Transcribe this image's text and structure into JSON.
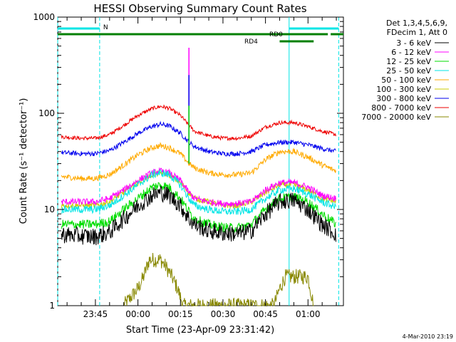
{
  "chart_data": {
    "type": "line",
    "title": "HESSI Observing Summary Count Rates",
    "xlabel": "Start Time (23-Apr-09 23:31:42)",
    "ylabel": "Count Rate (s⁻¹ detector⁻¹)",
    "yscale": "log",
    "ylim": [
      1,
      1000
    ],
    "xlim": [
      "23:31:42",
      "01:12:30"
    ],
    "y_ticks": [
      "1",
      "10",
      "100",
      "1000"
    ],
    "x_ticks": [
      "23:45",
      "00:00",
      "00:15",
      "00:30",
      "00:45",
      "01:00"
    ],
    "legend_header": [
      "Det 1,3,4,5,6,9,",
      "FDecim 1, Att 0"
    ],
    "legend_position": "right",
    "footer": "4-Mar-2010 23:19",
    "vertical_lines": [
      "23:31:42",
      "23:46:30",
      "00:53:20",
      "01:10:50"
    ],
    "flags": [
      {
        "label": "N",
        "color": "#00e5e5",
        "segments": [
          [
            "23:31:42",
            "23:46:30"
          ],
          [
            "00:53:20",
            "01:10:50"
          ]
        ]
      },
      {
        "label": "RD0",
        "color": "#007f00",
        "segments": [
          [
            "23:31:42",
            "01:07:00"
          ],
          [
            "01:08:00",
            "01:12:30"
          ]
        ]
      },
      {
        "label": "RD4",
        "color": "#007f00",
        "segments": [
          [
            "00:50:00",
            "01:02:00"
          ]
        ]
      }
    ],
    "series": [
      {
        "name": "3 - 6 keV",
        "color": "#000000",
        "x": [
          "23:33",
          "23:40",
          "23:45",
          "23:50",
          "23:55",
          "00:00",
          "00:05",
          "00:08",
          "00:11",
          "00:15",
          "00:18",
          "00:20",
          "00:25",
          "00:30",
          "00:35",
          "00:40",
          "00:45",
          "00:50",
          "00:55",
          "01:00",
          "01:05",
          "01:10"
        ],
        "values": [
          5.5,
          5.3,
          5.2,
          5.8,
          8,
          11,
          14,
          15,
          14,
          11,
          8,
          7,
          6,
          5.7,
          5.6,
          6,
          9,
          12,
          12.5,
          10,
          7,
          5.5
        ]
      },
      {
        "name": "6 - 12 keV",
        "color": "#ff00ff",
        "x": [
          "23:33",
          "23:40",
          "23:45",
          "23:50",
          "23:55",
          "00:00",
          "00:05",
          "00:08",
          "00:11",
          "00:15",
          "00:18",
          "00:20",
          "00:25",
          "00:30",
          "00:35",
          "00:40",
          "00:45",
          "00:50",
          "00:55",
          "01:00",
          "01:05",
          "01:10"
        ],
        "values": [
          12,
          12,
          12,
          13,
          16,
          20,
          24,
          25,
          24,
          20,
          15,
          13,
          12,
          11.5,
          11.5,
          12,
          16,
          19,
          19,
          17,
          14,
          13
        ]
      },
      {
        "name": "12 - 25 keV",
        "color": "#00dd00",
        "x": [
          "23:33",
          "23:40",
          "23:45",
          "23:50",
          "23:55",
          "00:00",
          "00:05",
          "00:08",
          "00:11",
          "00:15",
          "00:18",
          "00:20",
          "00:25",
          "00:30",
          "00:35",
          "00:40",
          "00:45",
          "00:50",
          "00:55",
          "01:00",
          "01:05",
          "01:10"
        ],
        "values": [
          7,
          7,
          7,
          7.5,
          10,
          13,
          17,
          18,
          17,
          13,
          9.5,
          8,
          7,
          6.5,
          6.4,
          7,
          10,
          13,
          13.5,
          12,
          9,
          7
        ]
      },
      {
        "name": "25 - 50 keV",
        "color": "#00e5e5",
        "x": [
          "23:33",
          "23:40",
          "23:45",
          "23:50",
          "23:55",
          "00:00",
          "00:05",
          "00:08",
          "00:11",
          "00:15",
          "00:18",
          "00:20",
          "00:25",
          "00:30",
          "00:35",
          "00:40",
          "00:45",
          "00:50",
          "00:55",
          "01:00",
          "01:05",
          "01:10"
        ],
        "values": [
          10,
          10,
          10,
          11,
          14,
          18,
          23,
          24,
          23,
          18,
          13,
          11,
          10,
          9.5,
          9.5,
          10,
          13,
          16,
          16.5,
          14.5,
          12,
          10.5
        ]
      },
      {
        "name": "50 - 100 keV",
        "color": "#ffaa00",
        "x": [
          "23:33",
          "23:40",
          "23:45",
          "23:50",
          "23:55",
          "00:00",
          "00:05",
          "00:08",
          "00:11",
          "00:15",
          "00:18",
          "00:20",
          "00:25",
          "00:30",
          "00:35",
          "00:40",
          "00:45",
          "00:50",
          "00:55",
          "01:00",
          "01:05",
          "01:10"
        ],
        "values": [
          22,
          21,
          21,
          23,
          29,
          37,
          44,
          46,
          44,
          38,
          30,
          27,
          24,
          23,
          23,
          24,
          33,
          40,
          40,
          35,
          29,
          25
        ]
      },
      {
        "name": "100 - 300 keV",
        "color": "#cccc00",
        "x": [
          "23:33",
          "23:40",
          "23:45",
          "23:50",
          "23:55",
          "00:00",
          "00:05",
          "00:08",
          "00:11",
          "00:15",
          "00:18",
          "00:20",
          "00:25",
          "00:30",
          "00:35",
          "00:40",
          "00:45",
          "00:50",
          "00:55",
          "01:00",
          "01:05",
          "01:10"
        ],
        "values": [
          11,
          11,
          11,
          12,
          15,
          19,
          23,
          24,
          23,
          19,
          15,
          13,
          12,
          11,
          11,
          12,
          15,
          18,
          18,
          16,
          13,
          12
        ]
      },
      {
        "name": "300 - 800 keV",
        "color": "#0000ee",
        "x": [
          "23:33",
          "23:40",
          "23:45",
          "23:50",
          "23:55",
          "00:00",
          "00:05",
          "00:08",
          "00:11",
          "00:15",
          "00:18",
          "00:20",
          "00:25",
          "00:30",
          "00:35",
          "00:40",
          "00:45",
          "00:50",
          "00:55",
          "01:00",
          "01:05",
          "01:10"
        ],
        "values": [
          39,
          38,
          38,
          41,
          50,
          62,
          73,
          77,
          74,
          62,
          50,
          45,
          40,
          38,
          38,
          40,
          47,
          50,
          50,
          47,
          43,
          40
        ]
      },
      {
        "name": "800 - 7000 keV",
        "color": "#ee0000",
        "x": [
          "23:33",
          "23:40",
          "23:45",
          "23:50",
          "23:55",
          "00:00",
          "00:05",
          "00:08",
          "00:11",
          "00:15",
          "00:18",
          "00:20",
          "00:25",
          "00:30",
          "00:35",
          "00:40",
          "00:45",
          "00:50",
          "00:55",
          "01:00",
          "01:05",
          "01:10"
        ],
        "values": [
          57,
          55,
          55,
          60,
          75,
          95,
          112,
          118,
          113,
          95,
          75,
          65,
          58,
          55,
          55,
          58,
          72,
          80,
          80,
          73,
          65,
          60
        ]
      },
      {
        "name": "7000 - 20000 keV",
        "color": "#888800",
        "x": [
          "23:55",
          "00:00",
          "00:02",
          "00:04",
          "00:06",
          "00:08",
          "00:10",
          "00:12",
          "00:14",
          "00:16",
          "00:48",
          "00:50",
          "00:52",
          "00:54",
          "00:56",
          "00:58",
          "01:00",
          "01:02"
        ],
        "values": [
          1,
          1.5,
          2,
          3,
          3,
          3,
          2.5,
          2,
          1.5,
          1,
          1,
          1.5,
          2,
          2,
          2,
          2,
          2,
          1
        ]
      }
    ],
    "spike": {
      "x": "00:18",
      "series_values": {
        "6 - 12 keV": 480,
        "300 - 800 keV": 250,
        "12 - 25 keV": 120
      }
    }
  }
}
